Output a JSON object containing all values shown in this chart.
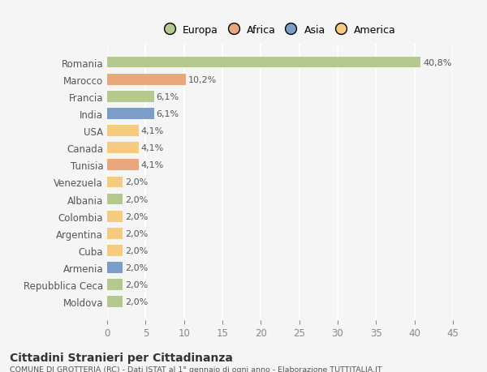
{
  "countries": [
    "Romania",
    "Marocco",
    "Francia",
    "India",
    "USA",
    "Canada",
    "Tunisia",
    "Venezuela",
    "Albania",
    "Colombia",
    "Argentina",
    "Cuba",
    "Armenia",
    "Repubblica Ceca",
    "Moldova"
  ],
  "values": [
    40.8,
    10.2,
    6.1,
    6.1,
    4.1,
    4.1,
    4.1,
    2.0,
    2.0,
    2.0,
    2.0,
    2.0,
    2.0,
    2.0,
    2.0
  ],
  "labels": [
    "40,8%",
    "10,2%",
    "6,1%",
    "6,1%",
    "4,1%",
    "4,1%",
    "4,1%",
    "2,0%",
    "2,0%",
    "2,0%",
    "2,0%",
    "2,0%",
    "2,0%",
    "2,0%",
    "2,0%"
  ],
  "colors": [
    "#b5c98e",
    "#e8a87c",
    "#b5c98e",
    "#7b9ec9",
    "#f5cc7f",
    "#f5cc7f",
    "#e8a87c",
    "#f5cc7f",
    "#b5c98e",
    "#f5cc7f",
    "#f5cc7f",
    "#f5cc7f",
    "#7b9ec9",
    "#b5c98e",
    "#b5c98e"
  ],
  "legend_labels": [
    "Europa",
    "Africa",
    "Asia",
    "America"
  ],
  "legend_colors": [
    "#b5c98e",
    "#e8a87c",
    "#7b9ec9",
    "#f5cc7f"
  ],
  "xlim": [
    0,
    45
  ],
  "xticks": [
    0,
    5,
    10,
    15,
    20,
    25,
    30,
    35,
    40,
    45
  ],
  "title": "Cittadini Stranieri per Cittadinanza",
  "subtitle": "COMUNE DI GROTTERIA (RC) - Dati ISTAT al 1° gennaio di ogni anno - Elaborazione TUTTITALIA.IT",
  "bg_color": "#f5f5f5",
  "grid_color": "#ffffff",
  "bar_height": 0.65
}
